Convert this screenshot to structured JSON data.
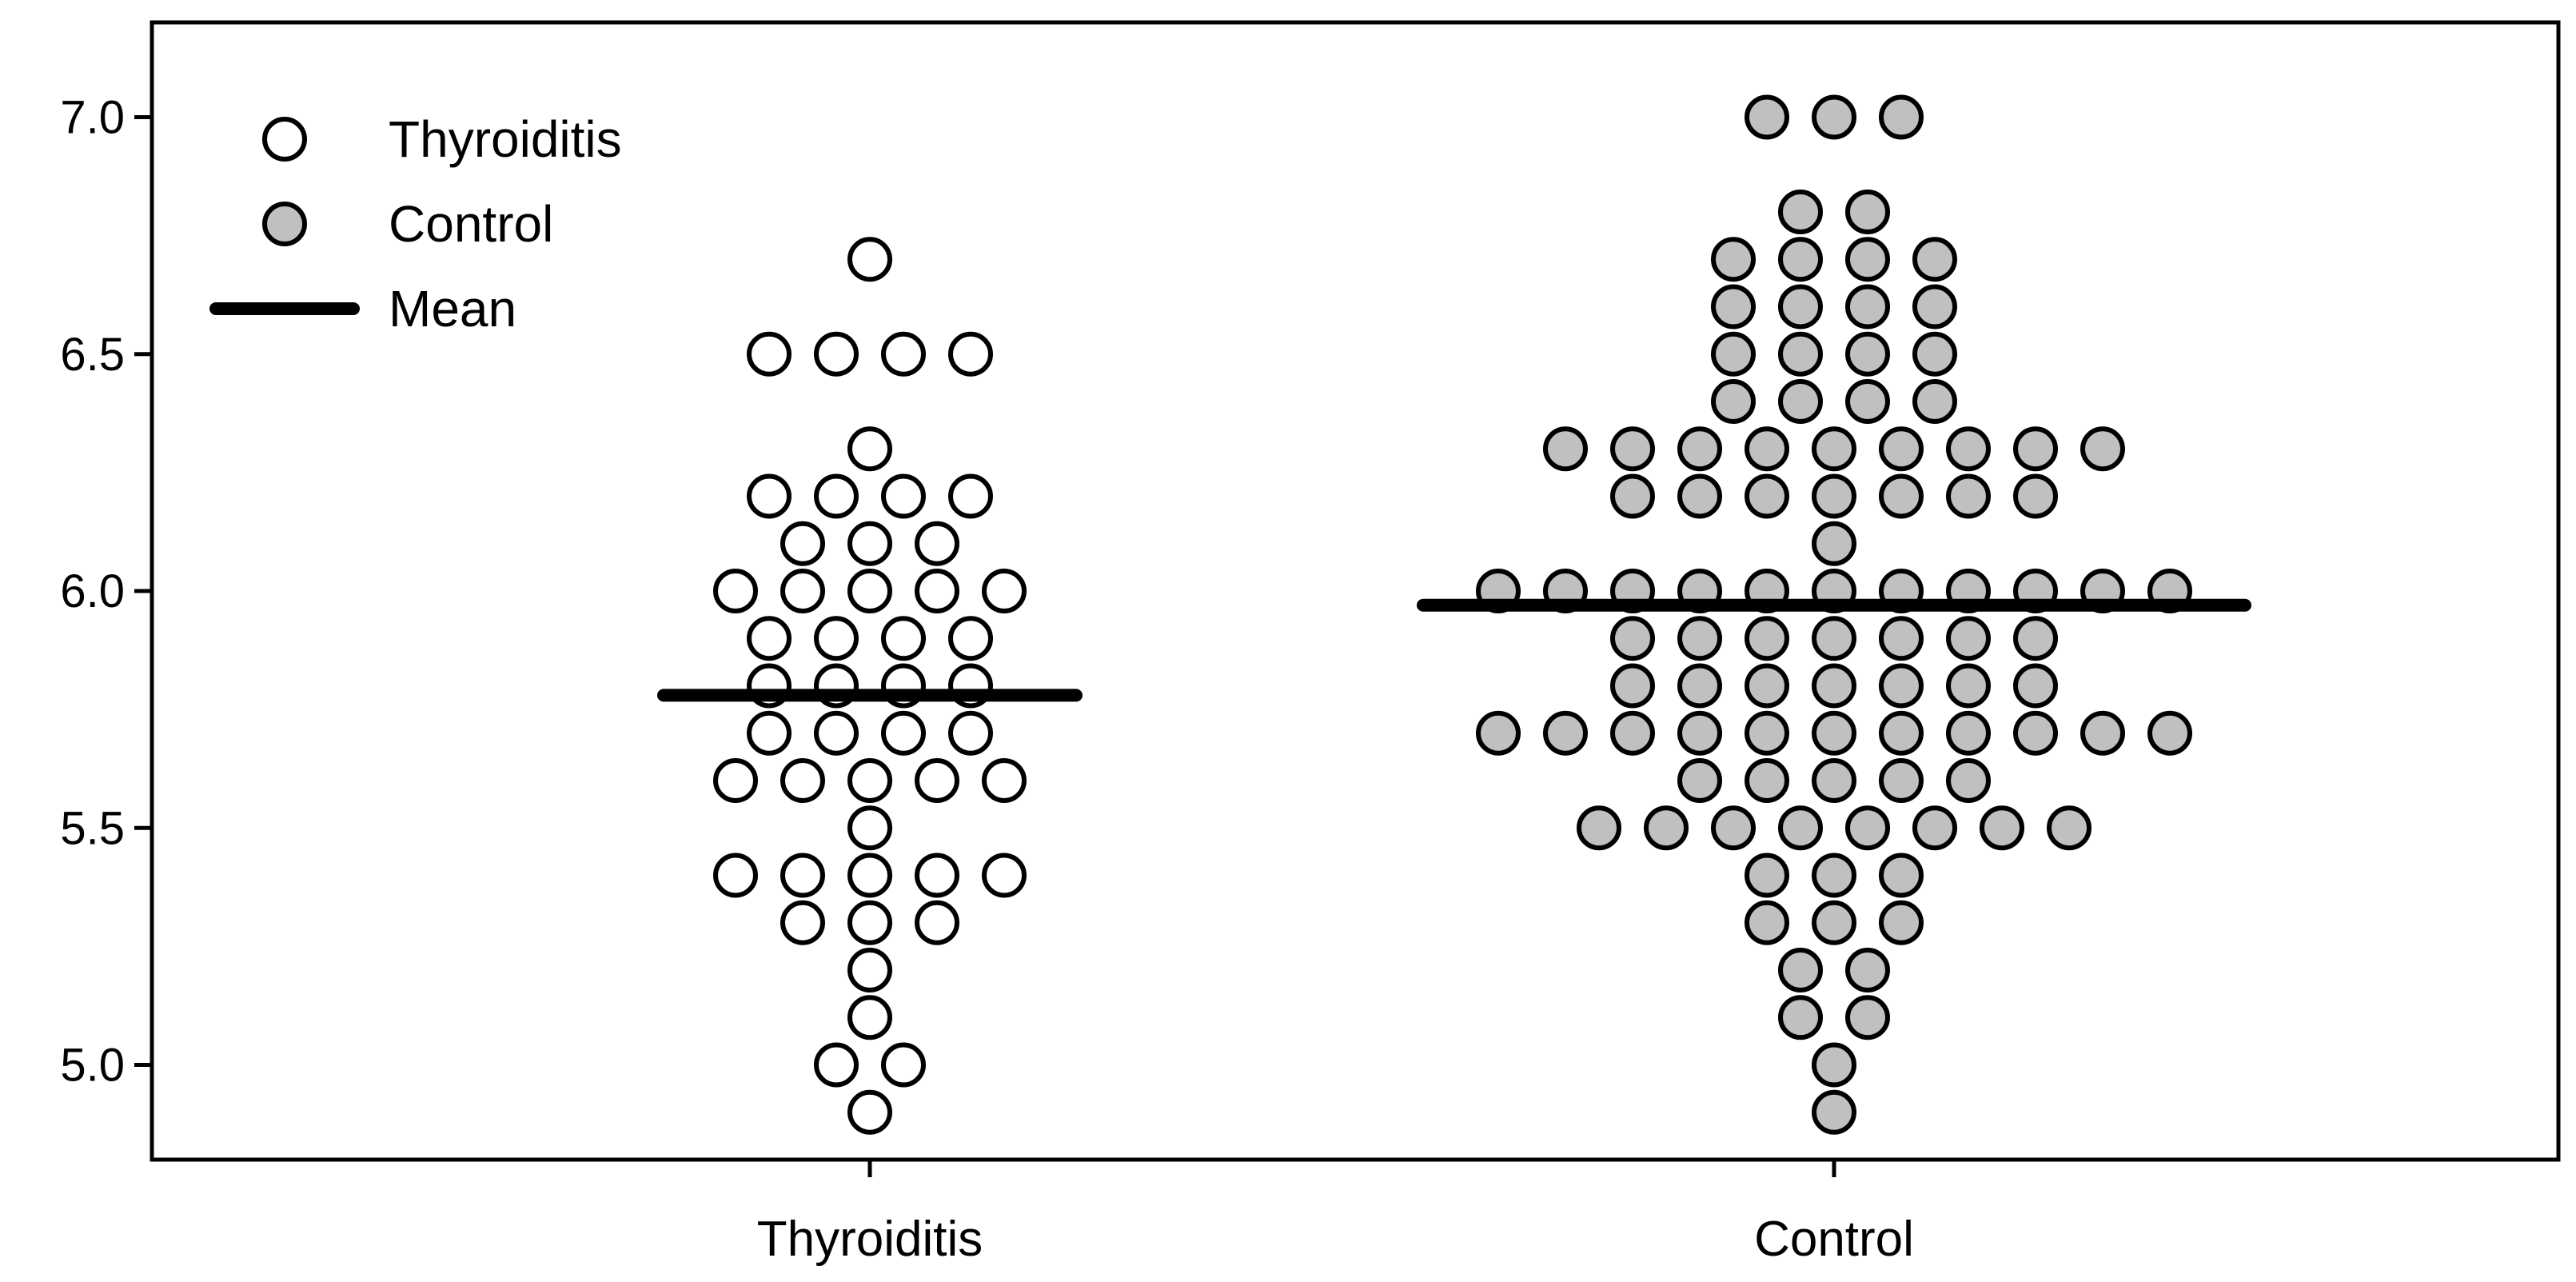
{
  "chart_data": {
    "type": "scatter",
    "subtype": "dot-plot",
    "categories": [
      "Thyroiditis",
      "Control"
    ],
    "ylim": [
      4.8,
      7.2
    ],
    "yticks": [
      "5.0",
      "5.5",
      "6.0",
      "6.5",
      "7.0"
    ],
    "grid": false,
    "legend": {
      "placement": "top-left",
      "items": [
        {
          "label": "Thyroiditis",
          "marker": "open-circle"
        },
        {
          "label": "Control",
          "marker": "filled-circle"
        },
        {
          "label": "Mean",
          "marker": "line"
        }
      ]
    },
    "colors": {
      "thyroiditis_fill": "#ffffff",
      "control_fill": "#c0c0c0",
      "stroke": "#000000",
      "mean_line": "#000000"
    },
    "series": [
      {
        "name": "Thyroiditis",
        "mean": 5.78,
        "values": [
          6.7,
          6.5,
          6.5,
          6.5,
          6.5,
          6.3,
          6.2,
          6.2,
          6.2,
          6.2,
          6.1,
          6.1,
          6.1,
          6.0,
          6.0,
          6.0,
          6.0,
          6.0,
          5.9,
          5.9,
          5.9,
          5.9,
          5.8,
          5.8,
          5.8,
          5.8,
          5.7,
          5.7,
          5.7,
          5.7,
          5.6,
          5.6,
          5.6,
          5.6,
          5.6,
          5.5,
          5.4,
          5.4,
          5.4,
          5.4,
          5.4,
          5.3,
          5.3,
          5.3,
          5.2,
          5.1,
          5.0,
          5.0,
          4.9
        ]
      },
      {
        "name": "Control",
        "mean": 5.97,
        "values": [
          7.0,
          7.0,
          7.0,
          6.8,
          6.8,
          6.7,
          6.7,
          6.7,
          6.7,
          6.6,
          6.6,
          6.6,
          6.6,
          6.5,
          6.5,
          6.5,
          6.5,
          6.4,
          6.4,
          6.4,
          6.4,
          6.3,
          6.3,
          6.3,
          6.3,
          6.3,
          6.3,
          6.3,
          6.3,
          6.3,
          6.2,
          6.2,
          6.2,
          6.2,
          6.2,
          6.2,
          6.2,
          6.1,
          6.0,
          6.0,
          6.0,
          6.0,
          6.0,
          6.0,
          6.0,
          6.0,
          6.0,
          6.0,
          6.0,
          5.9,
          5.9,
          5.9,
          5.9,
          5.9,
          5.9,
          5.9,
          5.8,
          5.8,
          5.8,
          5.8,
          5.8,
          5.8,
          5.8,
          5.7,
          5.7,
          5.7,
          5.7,
          5.7,
          5.7,
          5.7,
          5.7,
          5.7,
          5.7,
          5.7,
          5.6,
          5.6,
          5.6,
          5.6,
          5.6,
          5.5,
          5.5,
          5.5,
          5.5,
          5.5,
          5.5,
          5.5,
          5.5,
          5.4,
          5.4,
          5.4,
          5.3,
          5.3,
          5.3,
          5.2,
          5.2,
          5.1,
          5.1,
          5.0,
          4.9
        ]
      }
    ]
  }
}
